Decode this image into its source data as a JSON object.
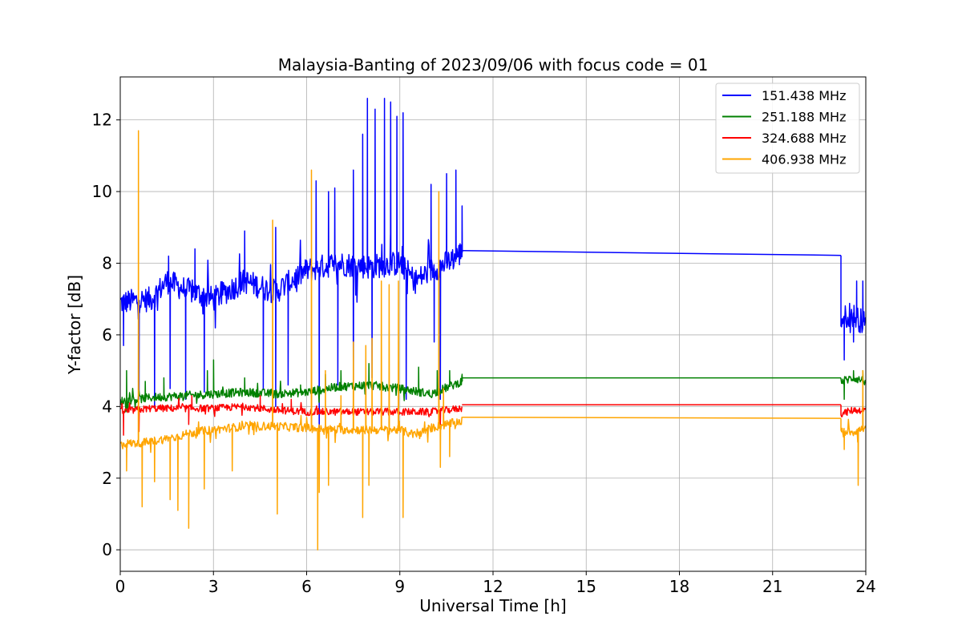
{
  "chart_data": {
    "type": "line",
    "title": "Malaysia-Banting of 2023/09/06 with focus code = 01",
    "xlabel": "Universal Time [h]",
    "ylabel": "Y-factor [dB]",
    "xlim": [
      0,
      24
    ],
    "ylim": [
      -0.6,
      13.2
    ],
    "x_ticks": [
      0,
      3,
      6,
      9,
      12,
      15,
      18,
      21,
      24
    ],
    "x_tick_labels": [
      "0",
      "3",
      "6",
      "9",
      "12",
      "15",
      "18",
      "21",
      "24"
    ],
    "y_ticks": [
      0,
      2,
      4,
      6,
      8,
      10,
      12
    ],
    "y_tick_labels": [
      "0",
      "2",
      "4",
      "6",
      "8",
      "10",
      "12"
    ],
    "grid": true,
    "legend_position": "upper right",
    "series": [
      {
        "name": "151.438 MHz",
        "color": "#0000ff",
        "data_start": 0,
        "data_end": 11.0,
        "resume_start": 23.2,
        "resume_end": 24.0,
        "baseline": [
          [
            0,
            6.9
          ],
          [
            1,
            7.0
          ],
          [
            1.5,
            7.5
          ],
          [
            2,
            7.3
          ],
          [
            3,
            7.0
          ],
          [
            4,
            7.5
          ],
          [
            5,
            7.2
          ],
          [
            6,
            7.8
          ],
          [
            7,
            8.0
          ],
          [
            8,
            7.9
          ],
          [
            9,
            8.0
          ],
          [
            9.5,
            7.5
          ],
          [
            10,
            7.8
          ],
          [
            10.5,
            8.0
          ],
          [
            11,
            8.3
          ]
        ],
        "noise": 0.35,
        "spikes": [
          [
            1.55,
            8.2
          ],
          [
            2.4,
            8.4
          ],
          [
            4.0,
            8.9
          ],
          [
            5.0,
            9.0
          ],
          [
            6.3,
            10.3
          ],
          [
            6.7,
            10.0
          ],
          [
            6.9,
            10.1
          ],
          [
            7.5,
            10.6
          ],
          [
            7.8,
            11.6
          ],
          [
            7.95,
            12.6
          ],
          [
            8.2,
            12.3
          ],
          [
            8.5,
            12.6
          ],
          [
            8.7,
            12.5
          ],
          [
            8.9,
            12.1
          ],
          [
            9.1,
            12.2
          ],
          [
            10.0,
            10.2
          ],
          [
            10.5,
            10.5
          ],
          [
            10.8,
            10.6
          ],
          [
            11.0,
            9.6
          ]
        ],
        "dips": [
          [
            0.1,
            5.7
          ],
          [
            0.6,
            4.2
          ],
          [
            1.1,
            4.0
          ],
          [
            1.6,
            4.5
          ],
          [
            2.1,
            4.2
          ],
          [
            2.7,
            4.4
          ],
          [
            4.6,
            4.5
          ],
          [
            5.0,
            4.0
          ],
          [
            5.4,
            4.6
          ],
          [
            6.4,
            3.0
          ],
          [
            7.0,
            4.6
          ],
          [
            7.5,
            4.0
          ],
          [
            8.1,
            4.8
          ],
          [
            9.2,
            4.2
          ],
          [
            10.1,
            5.8
          ],
          [
            10.3,
            4.2
          ]
        ],
        "gap_line": [
          [
            11.0,
            8.35
          ],
          [
            23.2,
            8.22
          ]
        ],
        "tail": [
          [
            23.2,
            6.4
          ],
          [
            23.5,
            6.6
          ],
          [
            24.0,
            6.3
          ]
        ],
        "tail_noise": 0.35,
        "tail_dips": [
          [
            23.3,
            5.3
          ],
          [
            23.6,
            5.8
          ]
        ],
        "tail_spikes": [
          [
            23.7,
            7.5
          ],
          [
            23.9,
            7.5
          ]
        ]
      },
      {
        "name": "251.188 MHz",
        "color": "#008000",
        "data_start": 0,
        "data_end": 11.0,
        "resume_start": 23.2,
        "resume_end": 24.0,
        "baseline": [
          [
            0,
            4.15
          ],
          [
            1,
            4.25
          ],
          [
            2,
            4.3
          ],
          [
            3,
            4.35
          ],
          [
            4,
            4.4
          ],
          [
            5,
            4.35
          ],
          [
            6,
            4.4
          ],
          [
            7,
            4.55
          ],
          [
            8,
            4.6
          ],
          [
            9,
            4.5
          ],
          [
            10,
            4.35
          ],
          [
            11,
            4.7
          ]
        ],
        "noise": 0.12,
        "spikes": [
          [
            0.2,
            5.0
          ],
          [
            0.8,
            4.7
          ],
          [
            1.4,
            4.8
          ],
          [
            2.8,
            5.0
          ],
          [
            3.0,
            5.3
          ],
          [
            4.0,
            4.8
          ],
          [
            5.8,
            4.6
          ],
          [
            6.6,
            4.9
          ],
          [
            7.1,
            5.0
          ],
          [
            8.0,
            5.2
          ],
          [
            9.6,
            5.1
          ],
          [
            10.2,
            5.0
          ],
          [
            10.6,
            5.0
          ],
          [
            11.0,
            4.9
          ]
        ],
        "dips": [],
        "gap_line": [
          [
            11.0,
            4.8
          ],
          [
            23.2,
            4.8
          ]
        ],
        "tail": [
          [
            23.2,
            4.7
          ],
          [
            23.6,
            4.8
          ],
          [
            24.0,
            4.7
          ]
        ],
        "tail_noise": 0.12,
        "tail_dips": [
          [
            23.3,
            4.2
          ]
        ],
        "tail_spikes": [
          [
            23.6,
            5.0
          ],
          [
            23.9,
            5.0
          ]
        ]
      },
      {
        "name": "324.688 MHz",
        "color": "#ff0000",
        "data_start": 0,
        "data_end": 11.0,
        "resume_start": 23.2,
        "resume_end": 24.0,
        "baseline": [
          [
            0,
            3.85
          ],
          [
            1,
            3.95
          ],
          [
            2,
            3.95
          ],
          [
            3,
            3.95
          ],
          [
            4,
            4.0
          ],
          [
            5,
            3.9
          ],
          [
            6,
            3.85
          ],
          [
            7,
            3.85
          ],
          [
            8,
            3.85
          ],
          [
            9,
            3.85
          ],
          [
            10,
            3.85
          ],
          [
            11,
            3.95
          ]
        ],
        "noise": 0.1,
        "spikes": [
          [
            2.3,
            4.3
          ],
          [
            4.5,
            4.3
          ],
          [
            5.5,
            4.2
          ]
        ],
        "dips": [
          [
            0.1,
            3.2
          ],
          [
            0.6,
            3.3
          ],
          [
            2.2,
            3.5
          ],
          [
            10.3,
            3.5
          ]
        ],
        "gap_line": [
          [
            11.0,
            4.05
          ],
          [
            23.2,
            4.05
          ]
        ],
        "tail": [
          [
            23.2,
            3.8
          ],
          [
            23.6,
            3.9
          ],
          [
            24.0,
            3.9
          ]
        ],
        "tail_noise": 0.1,
        "tail_dips": [],
        "tail_spikes": []
      },
      {
        "name": "406.938 MHz",
        "color": "#ffa500",
        "data_start": 0,
        "data_end": 11.0,
        "resume_start": 23.2,
        "resume_end": 24.0,
        "baseline": [
          [
            0,
            2.95
          ],
          [
            0.8,
            3.0
          ],
          [
            1.5,
            3.1
          ],
          [
            2,
            3.2
          ],
          [
            2.5,
            3.3
          ],
          [
            3,
            3.35
          ],
          [
            4,
            3.45
          ],
          [
            5,
            3.45
          ],
          [
            6,
            3.4
          ],
          [
            7,
            3.35
          ],
          [
            8,
            3.35
          ],
          [
            9,
            3.35
          ],
          [
            9.5,
            3.2
          ],
          [
            10,
            3.4
          ],
          [
            11,
            3.6
          ]
        ],
        "noise": 0.12,
        "spikes": [
          [
            0.58,
            11.7
          ],
          [
            4.9,
            9.2
          ],
          [
            6.15,
            10.6
          ],
          [
            6.6,
            5.0
          ],
          [
            7.1,
            4.3
          ],
          [
            7.5,
            5.8
          ],
          [
            7.9,
            5.7
          ],
          [
            8.1,
            5.9
          ],
          [
            8.4,
            7.5
          ],
          [
            8.65,
            7.4
          ],
          [
            8.95,
            7.5
          ],
          [
            10.25,
            10.0
          ],
          [
            10.4,
            4.5
          ]
        ],
        "dips": [
          [
            0.2,
            2.2
          ],
          [
            0.7,
            1.2
          ],
          [
            1.1,
            1.9
          ],
          [
            1.6,
            1.4
          ],
          [
            1.85,
            1.1
          ],
          [
            2.2,
            0.6
          ],
          [
            2.7,
            1.7
          ],
          [
            3.6,
            2.2
          ],
          [
            5.05,
            1.0
          ],
          [
            6.4,
            1.6
          ],
          [
            6.35,
            0.0
          ],
          [
            6.7,
            1.8
          ],
          [
            7.8,
            0.9
          ],
          [
            8.0,
            1.8
          ],
          [
            9.1,
            0.9
          ],
          [
            10.3,
            2.3
          ],
          [
            10.6,
            2.6
          ]
        ],
        "gap_line": [
          [
            11.0,
            3.7
          ],
          [
            23.2,
            3.67
          ]
        ],
        "tail": [
          [
            23.2,
            3.3
          ],
          [
            23.6,
            3.3
          ],
          [
            24.0,
            3.4
          ]
        ],
        "tail_noise": 0.12,
        "tail_dips": [
          [
            23.3,
            2.8
          ],
          [
            23.75,
            1.8
          ]
        ],
        "tail_spikes": [
          [
            23.9,
            5.0
          ]
        ]
      }
    ]
  }
}
